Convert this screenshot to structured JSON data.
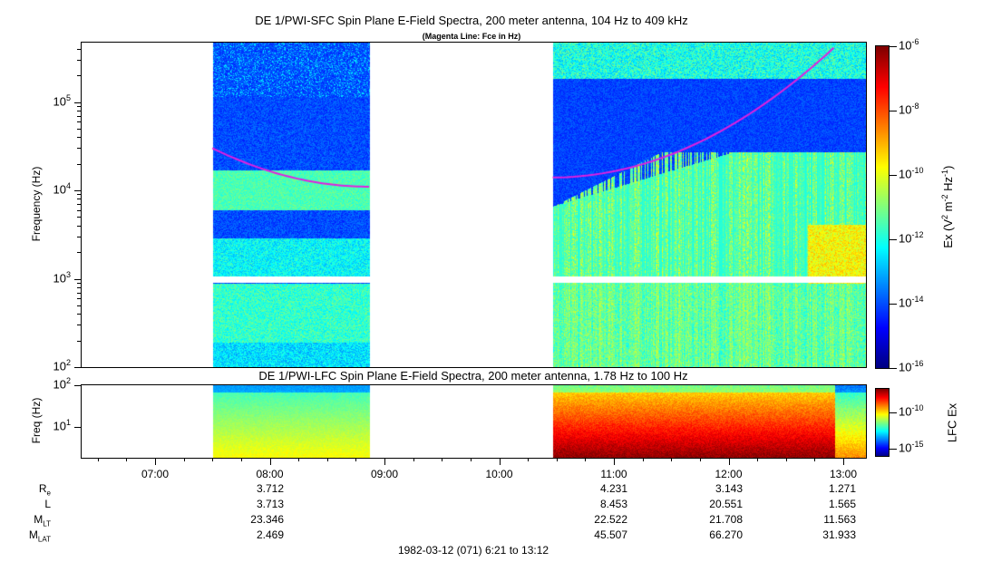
{
  "chart_data": [
    {
      "type": "heatmap",
      "title": "DE 1/PWI-SFC  Spin Plane E-Field Spectra, 200 meter antenna, 104 Hz to 409 kHz",
      "subtitle": "(Magenta Line: Fce in Hz)",
      "ylabel": "Frequency (Hz)",
      "yscale": "log",
      "ylim": [
        100,
        409000
      ],
      "yticks": [
        "10^2",
        "10^3",
        "10^4",
        "10^5"
      ],
      "colorbar": {
        "label": "Ex (V^2 m^-2 Hz^-1)",
        "range": [
          1e-16,
          1e-06
        ],
        "ticks": [
          "10^-6",
          "10^-8",
          "10^-10",
          "10^-12",
          "10^-14",
          "10^-16"
        ]
      },
      "data_intervals": [
        [
          "07:30",
          "08:52"
        ],
        [
          "10:28",
          "13:12"
        ]
      ],
      "fce_line": {
        "color": "#e020e0",
        "segments": [
          {
            "x": [
              "07:30",
              "08:52"
            ],
            "y": [
              30000,
              11000
            ]
          },
          {
            "x": [
              "10:28",
              "12:55"
            ],
            "y": [
              14000,
              409000
            ]
          }
        ]
      }
    },
    {
      "type": "heatmap",
      "title": "DE 1/PWI-LFC  Spin Plane E-Field Spectra, 200 meter antenna, 1.78 Hz to 100 Hz",
      "ylabel": "Freq (Hz)",
      "yscale": "log",
      "ylim": [
        1.78,
        100
      ],
      "yticks": [
        "10^1",
        "10^2"
      ],
      "colorbar": {
        "label": "LFC Ex",
        "ticks": [
          "10^-10",
          "10^-15"
        ]
      }
    }
  ],
  "xaxis": {
    "ticks": [
      "07:00",
      "08:00",
      "09:00",
      "10:00",
      "11:00",
      "12:00",
      "13:00"
    ]
  },
  "ephemeris": {
    "rows": [
      {
        "label": "R",
        "sub": "e",
        "values": [
          "3.712",
          "",
          "",
          "4.231",
          "3.143",
          "1.271"
        ]
      },
      {
        "label": "L",
        "sub": "",
        "values": [
          "3.713",
          "",
          "",
          "8.453",
          "20.551",
          "1.565"
        ]
      },
      {
        "label": "M",
        "sub": "LT",
        "values": [
          "23.346",
          "",
          "",
          "22.522",
          "21.708",
          "11.563"
        ]
      },
      {
        "label": "M",
        "sub": "LAT",
        "values": [
          "2.469",
          "",
          "",
          "45.507",
          "66.270",
          "31.933"
        ]
      }
    ]
  },
  "footer": "1982-03-12 (071) 6:21 to 13:12",
  "labels": {
    "cb_main_pre": "Ex (V",
    "cb_main_mid": " m",
    "cb_main_mid2": " Hz",
    "cb_main_end": ")",
    "sup2": "2",
    "supm2": "-2",
    "supm1": "-1",
    "ten": "10"
  }
}
